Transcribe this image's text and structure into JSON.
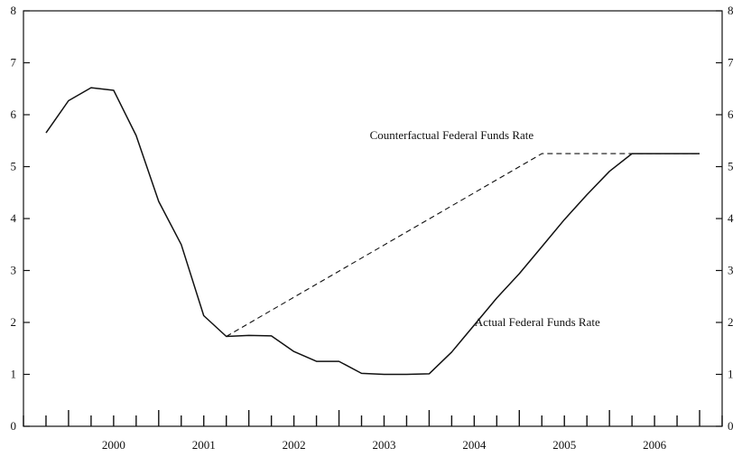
{
  "chart_data": {
    "type": "line",
    "title": "",
    "xlabel": "",
    "ylabel": "",
    "ylim": [
      0,
      8
    ],
    "y_ticks": [
      "0",
      "1",
      "2",
      "3",
      "4",
      "5",
      "6",
      "7",
      "8"
    ],
    "x_range": [
      1999.5,
      2007.25
    ],
    "year_labels": [
      "2000",
      "2001",
      "2002",
      "2003",
      "2004",
      "2005",
      "2006"
    ],
    "grid": false,
    "series": [
      {
        "name": "Actual Federal Funds Rate",
        "style": "solid",
        "color": "#111111",
        "x": [
          1999.75,
          2000.0,
          2000.25,
          2000.5,
          2000.75,
          2001.0,
          2001.25,
          2001.5,
          2001.75,
          2002.0,
          2002.25,
          2002.5,
          2002.75,
          2003.0,
          2003.25,
          2003.5,
          2003.75,
          2004.0,
          2004.25,
          2004.5,
          2004.75,
          2005.0,
          2005.25,
          2005.5,
          2005.75,
          2006.0,
          2006.25,
          2006.5,
          2006.75,
          2007.0
        ],
        "y": [
          5.65,
          6.27,
          6.52,
          6.47,
          5.6,
          4.33,
          3.5,
          2.13,
          1.73,
          1.75,
          1.74,
          1.44,
          1.25,
          1.25,
          1.02,
          1.0,
          1.0,
          1.01,
          1.43,
          1.95,
          2.47,
          2.94,
          3.46,
          3.98,
          4.46,
          4.91,
          5.25,
          5.25,
          5.25,
          5.25
        ]
      },
      {
        "name": "Counterfactual Federal Funds Rate",
        "style": "dashed",
        "color": "#111111",
        "x": [
          2001.75,
          2005.25,
          2006.25,
          2007.0
        ],
        "y": [
          1.73,
          5.25,
          5.25,
          5.25
        ]
      }
    ],
    "annotations": [
      {
        "text": "Counterfactual Federal Funds Rate",
        "x": 2004.25,
        "y": 5.6
      },
      {
        "text": "Actual Federal Funds Rate",
        "x": 2005.2,
        "y": 2.0
      }
    ]
  }
}
